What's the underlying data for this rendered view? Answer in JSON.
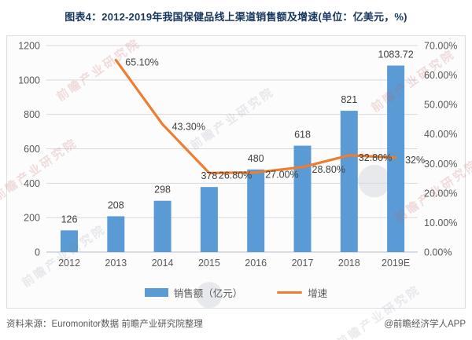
{
  "title": "图表4：2012-2019年我国保健品线上渠道销售额及增速(单位：亿美元，%)",
  "footer": {
    "source": "资料来源：Euromonitor数据 前瞻产业研究院整理",
    "credit": "@前瞻经济学人APP"
  },
  "watermark": {
    "text": "前瞻产业研究院"
  },
  "colors": {
    "bar": "#5B9BD5",
    "line": "#ED7D31",
    "axis_text": "#595959",
    "grid": "#d9d9d9",
    "axis_line": "#b9bdc5",
    "label": "#404040",
    "title": "#17375e"
  },
  "chart_data": {
    "type": "bar+line",
    "title": "图表4：2012-2019年我国保健品线上渠道销售额及增速(单位：亿美元，%)",
    "categories": [
      "2012",
      "2013",
      "2014",
      "2015",
      "2016",
      "2017",
      "2018",
      "2019E"
    ],
    "series": [
      {
        "name": "销售额（亿元）",
        "type": "bar",
        "axis": "left",
        "values": [
          126,
          208,
          298,
          378,
          480,
          618,
          821,
          1083.72
        ],
        "labels": [
          "126",
          "208",
          "298",
          "378",
          "480",
          "618",
          "821",
          "1083.72"
        ]
      },
      {
        "name": "增速",
        "type": "line",
        "axis": "right",
        "values": [
          null,
          65.1,
          43.3,
          26.8,
          27.0,
          28.8,
          32.8,
          32
        ],
        "labels": [
          null,
          "65.10%",
          "43.30%",
          "26.80%",
          "27.00%",
          "28.80%",
          "32.80%",
          "32%"
        ]
      }
    ],
    "left_axis": {
      "min": 0,
      "max": 1200,
      "step": 200,
      "ticks": [
        "0",
        "200",
        "400",
        "600",
        "800",
        "1000",
        "1200"
      ]
    },
    "right_axis": {
      "min": 0,
      "max": 70,
      "step": 10,
      "ticks": [
        "0.00%",
        "10.00%",
        "20.00%",
        "30.00%",
        "40.00%",
        "50.00%",
        "60.00%",
        "70.00%"
      ]
    },
    "grid": true,
    "legend_position": "bottom",
    "legend": [
      {
        "label": "销售额（亿元）",
        "swatch": "bar"
      },
      {
        "label": "增速",
        "swatch": "line"
      }
    ]
  }
}
